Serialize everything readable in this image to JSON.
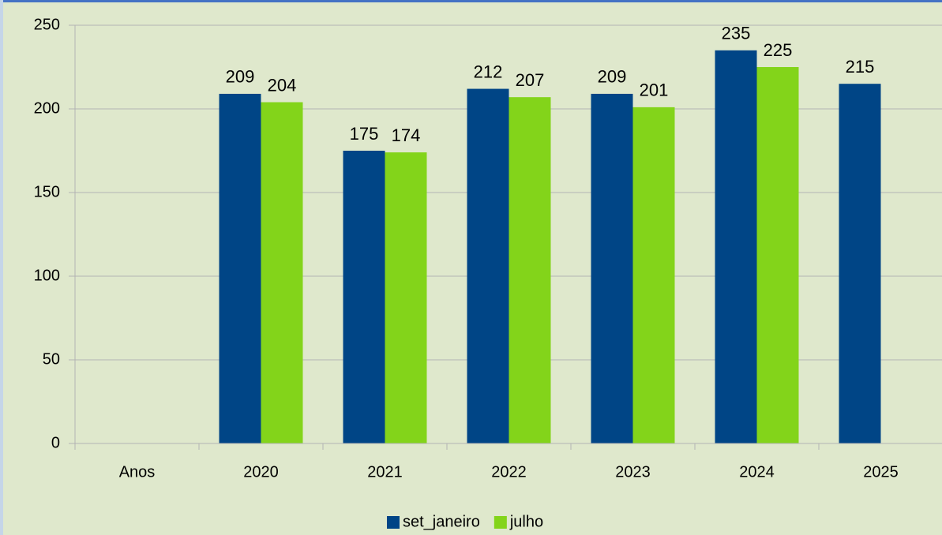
{
  "chart_data": {
    "type": "bar",
    "categories": [
      "Anos",
      "2020",
      "2021",
      "2022",
      "2023",
      "2024",
      "2025"
    ],
    "series": [
      {
        "name": "set_janeiro",
        "color": "#004586",
        "values": [
          null,
          209,
          175,
          212,
          209,
          235,
          215
        ]
      },
      {
        "name": "julho",
        "color": "#83d41a",
        "values": [
          null,
          204,
          174,
          207,
          201,
          225,
          null
        ]
      }
    ],
    "ylim": [
      0,
      250
    ],
    "yticks": [
      0,
      50,
      100,
      150,
      200,
      250
    ],
    "grid": true,
    "legend": "bottom"
  }
}
